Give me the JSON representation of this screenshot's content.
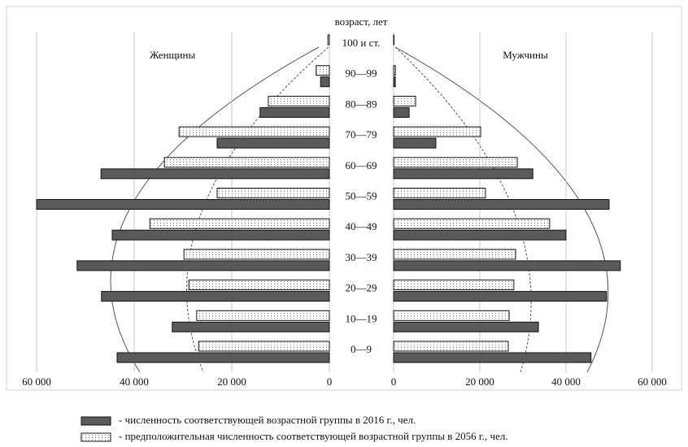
{
  "chart_data": {
    "type": "pyramid",
    "title": "возраст, лет",
    "categories": [
      "0—9",
      "10—19",
      "20—29",
      "30—39",
      "40—49",
      "50—59",
      "60—69",
      "70—79",
      "80—89",
      "90—99",
      "100 и ст."
    ],
    "series": [
      {
        "name": "- численность соответствующей возрастной группы в 2016 г., чел.",
        "color": "#5a5a5a",
        "pattern": "solid"
      },
      {
        "name": "- предположительная численность соответствующей возрастной группы в 2056 г., чел.",
        "color": "#ffffff",
        "pattern": "dots"
      }
    ],
    "panels": [
      {
        "label": "Женщины",
        "side": "left",
        "xlim": [
          0,
          60000
        ],
        "xticks": [
          {
            "value": 60000,
            "label": "60 000"
          },
          {
            "value": 40000,
            "label": "40 000"
          },
          {
            "value": 20000,
            "label": "20 000"
          },
          0
        ],
        "values": [
          [
            43500,
            32200,
            46700,
            51700,
            44500,
            60000,
            46800,
            23000,
            14200,
            1800,
            0
          ],
          [
            26800,
            27200,
            28800,
            29800,
            36800,
            23000,
            33800,
            30800,
            12500,
            2700,
            300
          ]
        ]
      },
      {
        "label": "Мужчины",
        "side": "right",
        "xlim": [
          0,
          60000
        ],
        "xticks": [
          0,
          {
            "value": 20000,
            "label": "20 000"
          },
          {
            "value": 40000,
            "label": "40 000"
          },
          {
            "value": 60000,
            "label": "60 000"
          }
        ],
        "values": [
          [
            45800,
            33600,
            49400,
            52600,
            40000,
            50000,
            32300,
            9800,
            3600,
            400,
            0
          ],
          [
            26600,
            26800,
            27900,
            28300,
            36200,
            21300,
            28700,
            20200,
            5100,
            400,
            100
          ]
        ]
      }
    ],
    "grid": true
  }
}
